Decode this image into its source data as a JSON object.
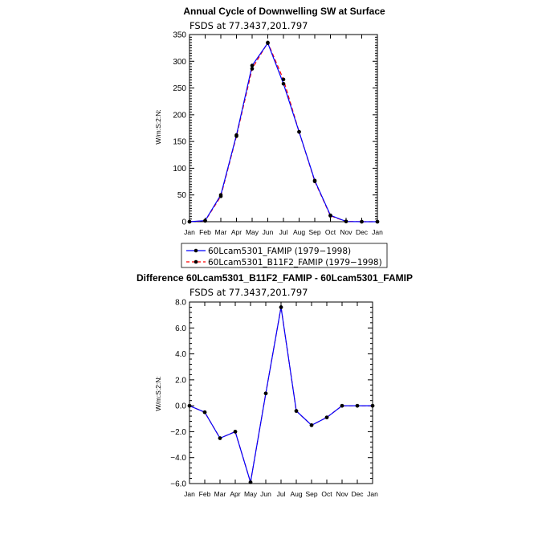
{
  "chart_data": [
    {
      "type": "line",
      "title": "Annual Cycle of Downwelling SW at Surface",
      "subtitle": "FSDS  at  77.3437,201.797",
      "ylabel": "W/m:S:2:N:",
      "xlabel": "",
      "categories": [
        "Jan",
        "Feb",
        "Mar",
        "Apr",
        "May",
        "Jun",
        "Jul",
        "Aug",
        "Sep",
        "Oct",
        "Nov",
        "Dec",
        "Jan"
      ],
      "ylim": [
        0,
        350
      ],
      "yticks": [
        0,
        50,
        100,
        150,
        200,
        250,
        300,
        350
      ],
      "ytick_labels": [
        "0",
        "50",
        "100",
        "150",
        "200",
        "250",
        "300",
        "350"
      ],
      "series": [
        {
          "name": "60Lcam5301_FAMIP (1979−1998)",
          "color": "#0000ff",
          "dash": "solid",
          "values": [
            0,
            2,
            50,
            162,
            292,
            334,
            258,
            168,
            77,
            12,
            0.5,
            0,
            0
          ]
        },
        {
          "name": "60Lcam5301_B11F2_FAMIP (1979−1998)",
          "color": "#ff0000",
          "dash": "dashed",
          "values": [
            0,
            1.5,
            47.5,
            160,
            286,
            335,
            266,
            168,
            75.5,
            11,
            0.5,
            0,
            0
          ]
        }
      ],
      "legend_position": "bottom"
    },
    {
      "type": "line",
      "title": "Difference 60Lcam5301_B11F2_FAMIP - 60Lcam5301_FAMIP",
      "subtitle": "FSDS  at  77.3437,201.797",
      "ylabel": "W/m:S:2:N:",
      "xlabel": "",
      "categories": [
        "Jan",
        "Feb",
        "Mar",
        "Apr",
        "May",
        "Jun",
        "Jul",
        "Aug",
        "Sep",
        "Oct",
        "Nov",
        "Dec",
        "Jan"
      ],
      "ylim": [
        -6,
        8
      ],
      "yticks": [
        -6,
        -4,
        -2,
        0,
        2,
        4,
        6,
        8
      ],
      "ytick_labels": [
        "−6.0",
        "−4.0",
        "−2.0",
        "0.0",
        "2.0",
        "4.0",
        "6.0",
        "8.0"
      ],
      "series": [
        {
          "name": "",
          "color": "#0000ff",
          "dash": "solid",
          "values": [
            0,
            -0.5,
            -2.5,
            -2.0,
            -5.9,
            0.95,
            7.6,
            -0.4,
            -1.5,
            -0.9,
            0,
            0,
            0
          ]
        },
        {
          "name": "",
          "color": "#ff0000",
          "dash": "dashed",
          "values": [
            0,
            -0.5,
            -2.5,
            -2.0,
            -5.9,
            0.95,
            7.6,
            -0.4,
            -1.5,
            -0.9,
            0,
            0,
            0
          ]
        }
      ]
    }
  ]
}
